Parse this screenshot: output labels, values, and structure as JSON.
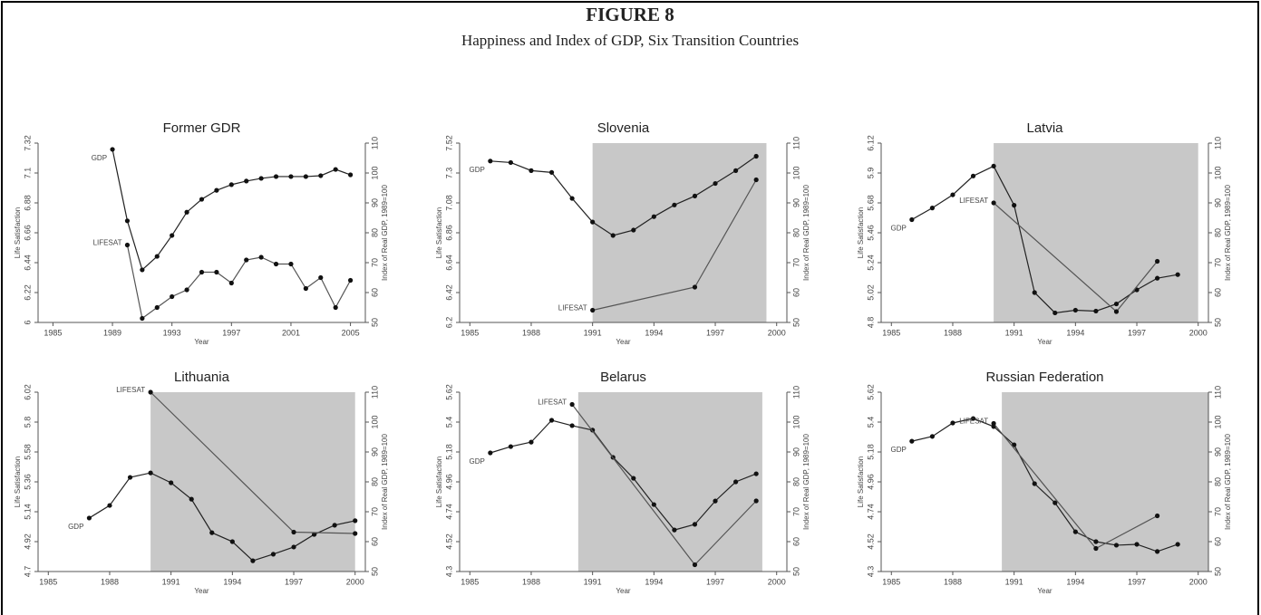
{
  "figure": {
    "label": "FIGURE 8",
    "title": "Happiness and Index of GDP, Six Transition Countries"
  },
  "chart_data": [
    {
      "type": "line",
      "title": "Former GDR",
      "xlabel": "Year",
      "ylabel": "Life Satisfaction",
      "y2label": "Index of Real GDP, 1989=100",
      "xlim": [
        1984,
        2006
      ],
      "xticks": [
        1985,
        1989,
        1993,
        1997,
        2001,
        2005
      ],
      "ylim": [
        6,
        7.32
      ],
      "yticks": [
        6,
        6.22,
        6.44,
        6.66,
        6.88,
        7.1,
        7.32
      ],
      "y2lim": [
        50,
        110
      ],
      "y2ticks": [
        50,
        60,
        70,
        80,
        90,
        100,
        110
      ],
      "series": [
        {
          "name": "GDP",
          "axis": "y2",
          "color": "#222222",
          "x": [
            1989,
            1990,
            1991,
            1992,
            1993,
            1994,
            1995,
            1996,
            1997,
            1998,
            1999,
            2000,
            2001,
            2002,
            2003,
            2004,
            2005
          ],
          "values": [
            107.9,
            84,
            67.6,
            72.1,
            79.1,
            86.9,
            91.2,
            94.2,
            96.1,
            97.3,
            98.2,
            98.8,
            98.8,
            98.8,
            99.1,
            101.2,
            99.4
          ]
        },
        {
          "name": "LIFESAT",
          "color": "#555555",
          "x": [
            1990,
            1991,
            1992,
            1993,
            1994,
            1995,
            1996,
            1997,
            1998,
            1999,
            2000,
            2001,
            2002,
            2003,
            2004,
            2005
          ],
          "values": [
            6.57,
            6.03,
            6.11,
            6.19,
            6.24,
            6.37,
            6.37,
            6.29,
            6.46,
            6.48,
            6.43,
            6.43,
            6.25,
            6.33,
            6.11,
            6.31
          ]
        }
      ]
    },
    {
      "type": "line",
      "title": "Slovenia",
      "xlabel": "Year",
      "ylabel": "Life Satisfaction",
      "y2label": "Index of Real GDP, 1989=100",
      "xlim": [
        1984.5,
        2000.5
      ],
      "xticks": [
        1985,
        1988,
        1991,
        1994,
        1997,
        2000
      ],
      "ylim": [
        6.2,
        7.52
      ],
      "yticks": [
        6.2,
        6.42,
        6.64,
        6.86,
        7.08,
        7.3,
        7.52
      ],
      "y2lim": [
        50,
        110
      ],
      "y2ticks": [
        50,
        60,
        70,
        80,
        90,
        100,
        110
      ],
      "shaded": [
        1991,
        1999.5
      ],
      "series": [
        {
          "name": "GDP",
          "axis": "y2",
          "color": "#222222",
          "x": [
            1986,
            1987,
            1988,
            1989,
            1990,
            1991,
            1992,
            1993,
            1994,
            1995,
            1996,
            1997,
            1998,
            1999
          ],
          "values": [
            104,
            103.5,
            100.8,
            100.2,
            91.5,
            83.6,
            79.1,
            80.9,
            85.4,
            89.3,
            92.3,
            96.5,
            100.8,
            105.6
          ]
        },
        {
          "name": "LIFESAT",
          "color": "#555555",
          "x": [
            1991,
            1996,
            1999
          ],
          "values": [
            6.29,
            6.46,
            7.25
          ]
        }
      ]
    },
    {
      "type": "line",
      "title": "Latvia",
      "xlabel": "Year",
      "ylabel": "Life Satisfaction",
      "y2label": "Index of Real GDP, 1989=100",
      "xlim": [
        1984.5,
        2000.5
      ],
      "xticks": [
        1985,
        1988,
        1991,
        1994,
        1997,
        2000
      ],
      "ylim": [
        4.8,
        6.12
      ],
      "yticks": [
        4.8,
        5.02,
        5.24,
        5.46,
        5.68,
        5.9,
        6.12
      ],
      "y2lim": [
        50,
        110
      ],
      "y2ticks": [
        50,
        60,
        70,
        80,
        90,
        100,
        110
      ],
      "shaded": [
        1990,
        2000
      ],
      "series": [
        {
          "name": "GDP",
          "axis": "y2",
          "color": "#222222",
          "x": [
            1986,
            1987,
            1988,
            1989,
            1990,
            1991,
            1992,
            1993,
            1994,
            1995,
            1996,
            1997,
            1998,
            1999
          ],
          "values": [
            84.4,
            88.3,
            92.7,
            99,
            102.3,
            89.2,
            60,
            53.2,
            54.1,
            53.8,
            56.2,
            60.9,
            64.8,
            66
          ]
        },
        {
          "name": "LIFESAT",
          "color": "#555555",
          "x": [
            1990,
            1996,
            1998
          ],
          "values": [
            5.68,
            4.88,
            5.25
          ]
        }
      ]
    },
    {
      "type": "line",
      "title": "Lithuania",
      "xlabel": "Year",
      "ylabel": "Life Satisfaction",
      "y2label": "Index of Real GDP, 1989=100",
      "xlim": [
        1984.5,
        2000.5
      ],
      "xticks": [
        1985,
        1988,
        1991,
        1994,
        1997,
        2000
      ],
      "ylim": [
        4.7,
        6.02
      ],
      "yticks": [
        4.7,
        4.92,
        5.14,
        5.36,
        5.58,
        5.8,
        6.02
      ],
      "y2lim": [
        50,
        110
      ],
      "y2ticks": [
        50,
        60,
        70,
        80,
        90,
        100,
        110
      ],
      "shaded": [
        1990,
        2000
      ],
      "series": [
        {
          "name": "GDP",
          "axis": "y2",
          "color": "#222222",
          "x": [
            1987,
            1988,
            1989,
            1990,
            1991,
            1992,
            1993,
            1994,
            1995,
            1996,
            1997,
            1998,
            1999,
            2000
          ],
          "values": [
            67.9,
            72.1,
            81.5,
            83,
            79.7,
            74.2,
            63,
            60,
            53.6,
            55.8,
            58.2,
            62.4,
            65.5,
            67
          ]
        },
        {
          "name": "LIFESAT",
          "color": "#555555",
          "x": [
            1990,
            1997,
            2000
          ],
          "values": [
            6.02,
            4.99,
            4.98
          ]
        }
      ]
    },
    {
      "type": "line",
      "title": "Belarus",
      "xlabel": "Year",
      "ylabel": "Life Satisfaction",
      "y2label": "Index of Real GDP, 1989=100",
      "xlim": [
        1984.5,
        2000.5
      ],
      "xticks": [
        1985,
        1988,
        1991,
        1994,
        1997,
        2000
      ],
      "ylim": [
        4.3,
        5.62
      ],
      "yticks": [
        4.3,
        4.52,
        4.74,
        4.96,
        5.18,
        5.4,
        5.62
      ],
      "y2lim": [
        50,
        110
      ],
      "y2ticks": [
        50,
        60,
        70,
        80,
        90,
        100,
        110
      ],
      "shaded": [
        1990.3,
        1999.3
      ],
      "series": [
        {
          "name": "GDP",
          "axis": "y2",
          "color": "#222222",
          "x": [
            1986,
            1987,
            1988,
            1989,
            1990,
            1991,
            1992,
            1993,
            1994,
            1995,
            1996,
            1997,
            1998,
            1999
          ],
          "values": [
            89.7,
            91.8,
            93.3,
            100.6,
            98.8,
            97.3,
            88.2,
            81.2,
            72.4,
            63.9,
            65.8,
            73.6,
            80,
            82.7
          ]
        },
        {
          "name": "LIFESAT",
          "color": "#555555",
          "x": [
            1990,
            1996,
            1999
          ],
          "values": [
            5.53,
            4.35,
            4.82
          ]
        }
      ]
    },
    {
      "type": "line",
      "title": "Russian Federation",
      "xlabel": "Year",
      "ylabel": "Life Satisfaction",
      "y2label": "Index of Real GDP, 1989=100",
      "xlim": [
        1984.5,
        2000.5
      ],
      "xticks": [
        1985,
        1988,
        1991,
        1994,
        1997,
        2000
      ],
      "ylim": [
        4.3,
        5.62
      ],
      "yticks": [
        4.3,
        4.52,
        4.74,
        4.96,
        5.18,
        5.4,
        5.62
      ],
      "y2lim": [
        50,
        110
      ],
      "y2ticks": [
        50,
        60,
        70,
        80,
        90,
        100,
        110
      ],
      "shaded": [
        1990.4,
        2000.5
      ],
      "series": [
        {
          "name": "GDP",
          "axis": "y2",
          "color": "#222222",
          "x": [
            1986,
            1987,
            1988,
            1989,
            1990,
            1991,
            1992,
            1993,
            1994,
            1995,
            1996,
            1997,
            1998,
            1999
          ],
          "values": [
            93.6,
            95.2,
            99.7,
            101.2,
            98.5,
            92.4,
            79.4,
            73,
            63.3,
            60,
            58.8,
            59.1,
            56.7,
            59.1
          ]
        },
        {
          "name": "LIFESAT",
          "color": "#555555",
          "x": [
            1990,
            1995,
            1998
          ],
          "values": [
            5.39,
            4.47,
            4.71
          ]
        }
      ]
    }
  ]
}
